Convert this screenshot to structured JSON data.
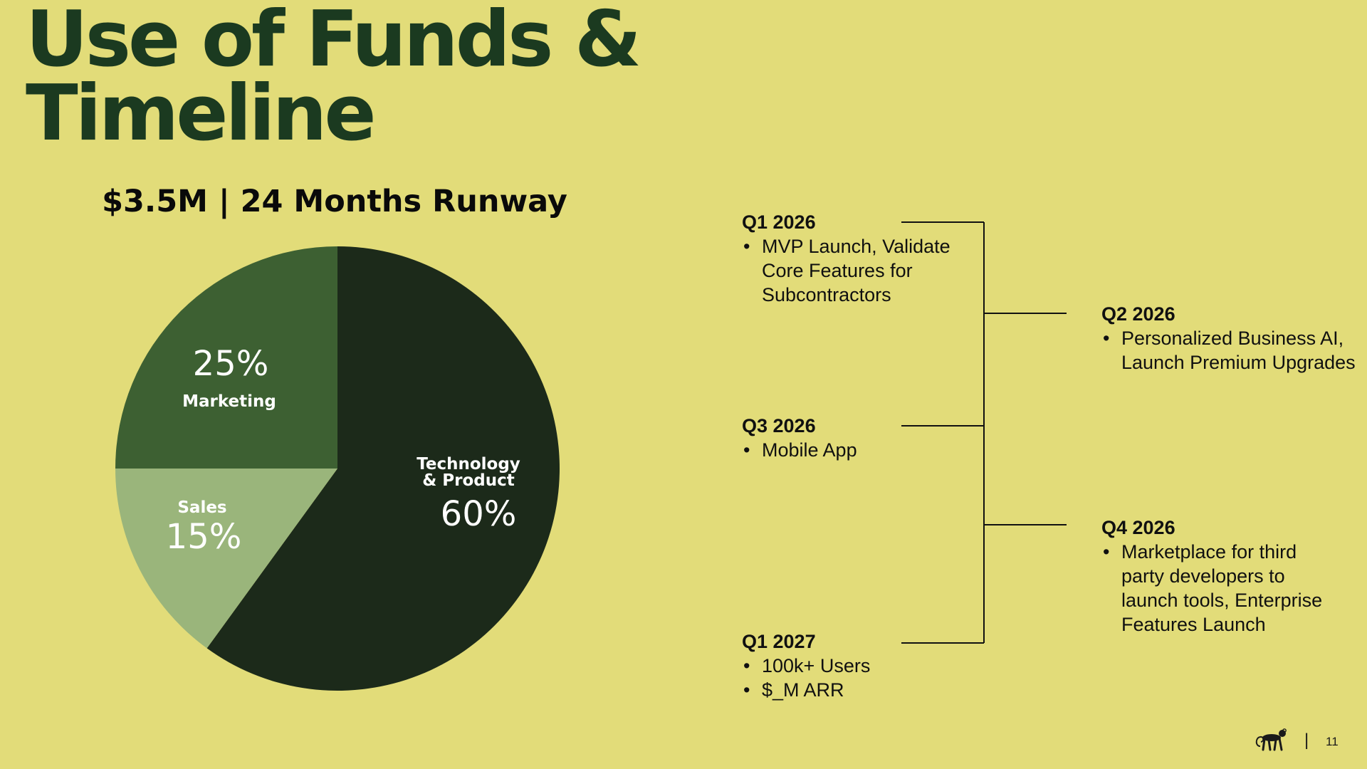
{
  "slide": {
    "title": "Use of Funds & Timeline",
    "subtitle": "$3.5M | 24 Months Runway",
    "page_number": "11",
    "footer_separator": "|"
  },
  "colors": {
    "background": "#E2DC79",
    "title": "#1B3A20",
    "technology": "#1C2A1A",
    "marketing": "#3D6032",
    "sales": "#9AB57B",
    "line": "#111111"
  },
  "chart_data": {
    "type": "pie",
    "title": "$3.5M | 24 Months Runway",
    "start_angle": "12 o'clock",
    "direction": "clockwise",
    "slices": [
      {
        "label_lines": [
          "Technology",
          "& Product"
        ],
        "value": 60,
        "value_label": "60%",
        "color": "#1C2A1A"
      },
      {
        "label_lines": [
          "Sales"
        ],
        "value": 15,
        "value_label": "15%",
        "color": "#9AB57B"
      },
      {
        "label_lines": [
          "Marketing"
        ],
        "value": 25,
        "value_label": "25%",
        "color": "#3D6032"
      }
    ]
  },
  "timeline": {
    "items": [
      {
        "label": "Q1 2026",
        "bullets": [
          "MVP Launch, Validate Core Features for Subcontractors"
        ]
      },
      {
        "label": "Q2 2026",
        "bullets": [
          "Personalized Business AI, Launch Premium Upgrades"
        ]
      },
      {
        "label": "Q3 2026",
        "bullets": [
          "Mobile App"
        ]
      },
      {
        "label": "Q4 2026",
        "bullets": [
          "Marketplace for third party developers to launch tools, Enterprise Features Launch"
        ]
      },
      {
        "label": "Q1 2027",
        "bullets": [
          "100k+ Users",
          "$_M ARR"
        ]
      }
    ]
  },
  "icons": {
    "footer_logo": "monkey-logo-icon"
  }
}
